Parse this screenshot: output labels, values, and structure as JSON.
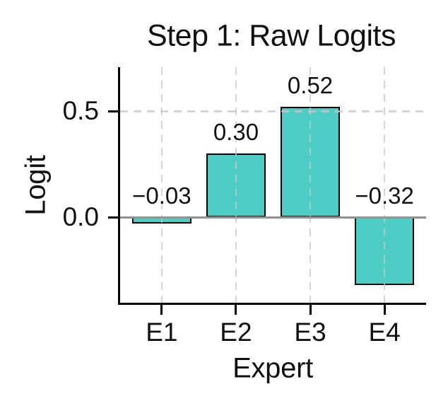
{
  "chart_data": {
    "type": "bar",
    "title": "Step 1: Raw Logits",
    "xlabel": "Expert",
    "ylabel": "Logit",
    "categories": [
      "E1",
      "E2",
      "E3",
      "E4"
    ],
    "values": [
      -0.03,
      0.3,
      0.52,
      -0.32
    ],
    "bar_value_labels": [
      "−0.03",
      "0.30",
      "0.52",
      "−0.32"
    ],
    "yticks": [
      {
        "value": 0.0,
        "label": "0.0"
      },
      {
        "value": 0.5,
        "label": "0.5"
      }
    ],
    "ylim": [
      -0.402,
      0.708
    ],
    "grid": "dashed vertical lines at each category and horizontal lines at yticks, drawn above bars",
    "zero_line": "solid gray horizontal line at y=0 spanning plot width",
    "legend_position": "none",
    "colors": {
      "bar_fill": "#4ECDC4",
      "bar_edge": "#000000",
      "zero_line": "#919191",
      "grid_line": "rgba(200,200,200,0.76)",
      "spine": "#000000",
      "text": "#111111",
      "background": "#ffffff"
    }
  }
}
